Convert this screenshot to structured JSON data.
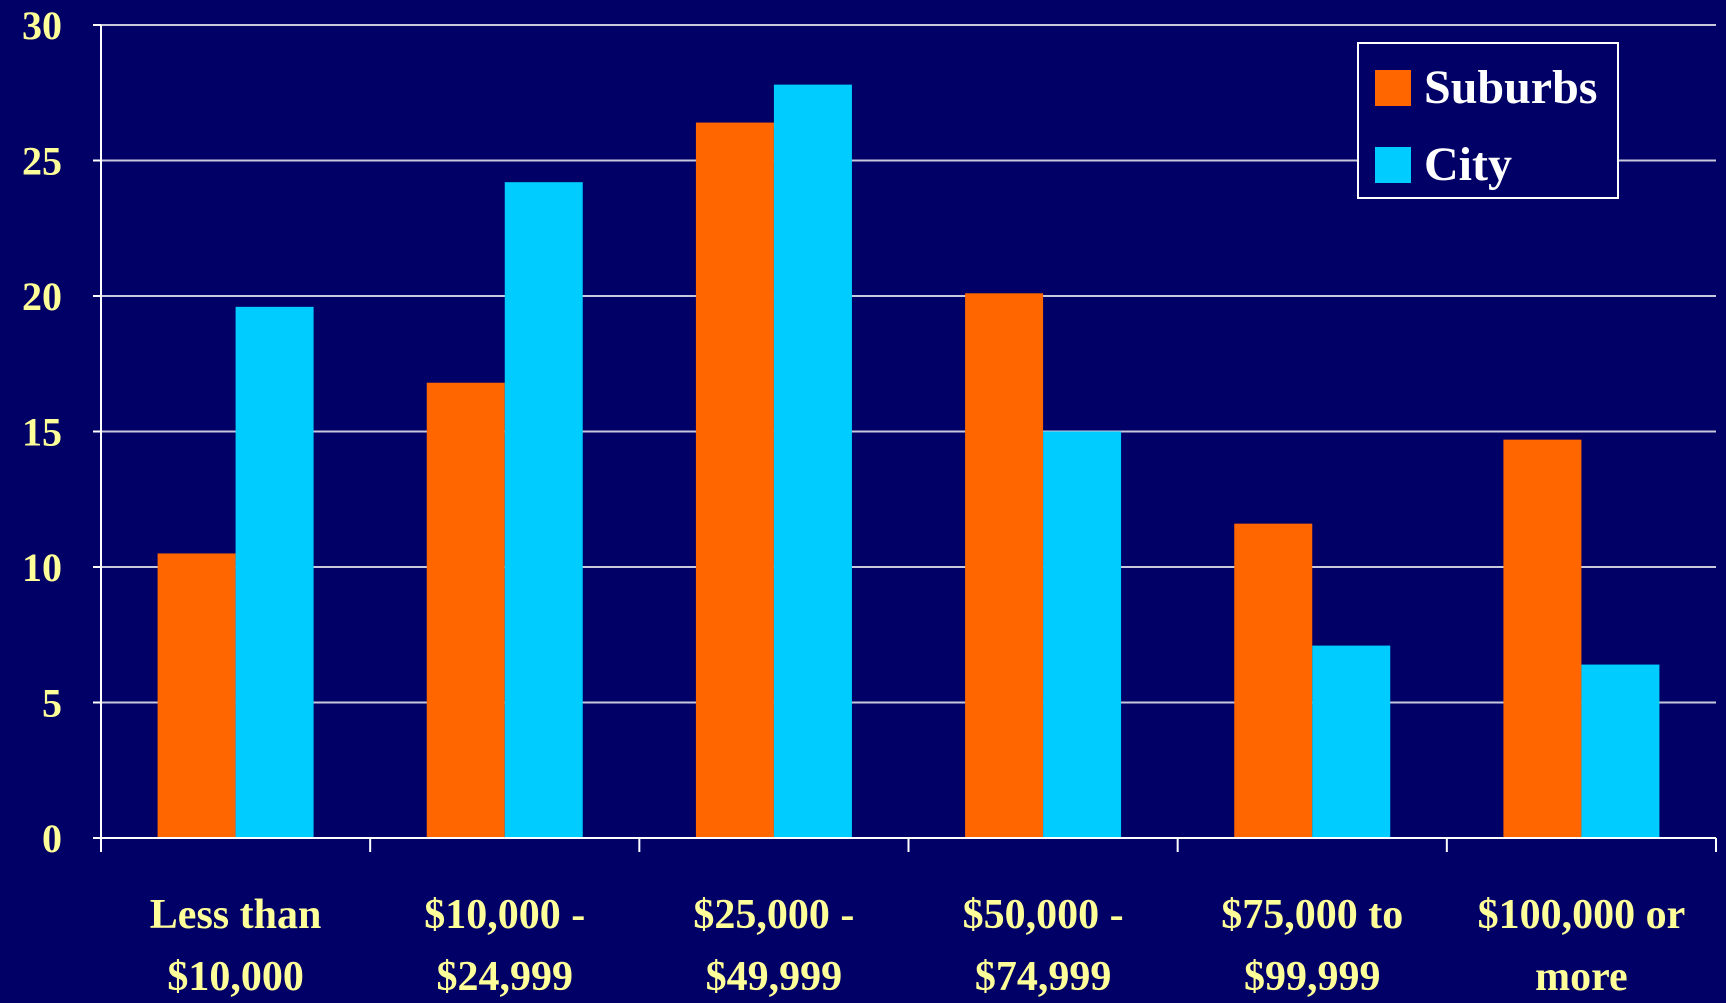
{
  "chart_data": {
    "type": "bar",
    "title": "",
    "xlabel": "",
    "ylabel": "",
    "ylim": [
      0,
      30
    ],
    "yticks": [
      "0",
      "5",
      "10",
      "15",
      "20",
      "25",
      "30"
    ],
    "grid": true,
    "legend_position": "top-right",
    "categories": [
      [
        "Less than",
        "$10,000"
      ],
      [
        "$10,000 -",
        "$24,999"
      ],
      [
        "$25,000 -",
        "$49,999"
      ],
      [
        "$50,000 -",
        "$74,999"
      ],
      [
        "$75,000 to",
        "$99,999"
      ],
      [
        "$100,000 or",
        "more"
      ]
    ],
    "series": [
      {
        "name": "Suburbs",
        "color": "#FF6600",
        "values": [
          10.5,
          16.8,
          26.4,
          20.1,
          11.6,
          14.7
        ]
      },
      {
        "name": "City",
        "color": "#00CCFF",
        "values": [
          19.6,
          24.2,
          27.8,
          15.0,
          7.1,
          6.4
        ]
      }
    ],
    "colors": {
      "background": "#000066",
      "axis": "#FFFFFF",
      "tick_text": "#FFFF99",
      "legend_text": "#FFFFFF"
    }
  }
}
